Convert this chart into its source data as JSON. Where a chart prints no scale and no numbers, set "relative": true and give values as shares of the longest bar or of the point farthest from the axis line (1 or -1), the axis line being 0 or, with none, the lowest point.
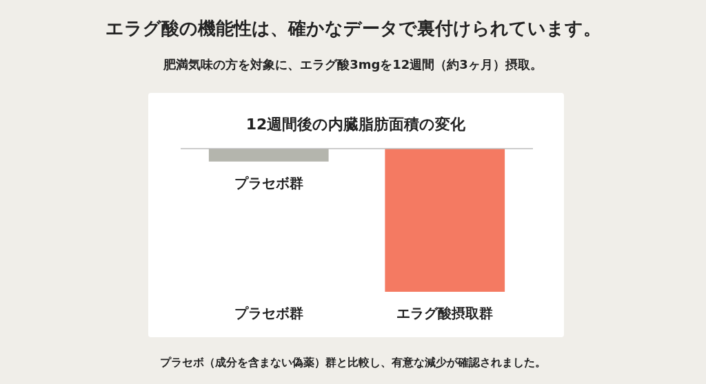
{
  "chart_data": {
    "type": "bar",
    "relative": true,
    "title": "12週間後の内臓脂肪面積の変化",
    "categories": [
      "プラセボ群",
      "エラグ酸摂取群"
    ],
    "values": [
      -0.09,
      -1
    ],
    "colors": [
      "#b4b5ad",
      "#f47a62"
    ],
    "annotations": [
      "エラグ酸の機能性は、確かなデータで裏付けられています。",
      "肥満気味の方を対象に、エラグ酸3mgを12週間（約3ヶ月）摂取。",
      {
        "text": "プラセボ群",
        "x": "プラセボ群",
        "y": -0.09
      },
      "プラセボ（成分を含まない偽薬）群と比較し、有意な減少が確認されました。"
    ]
  }
}
